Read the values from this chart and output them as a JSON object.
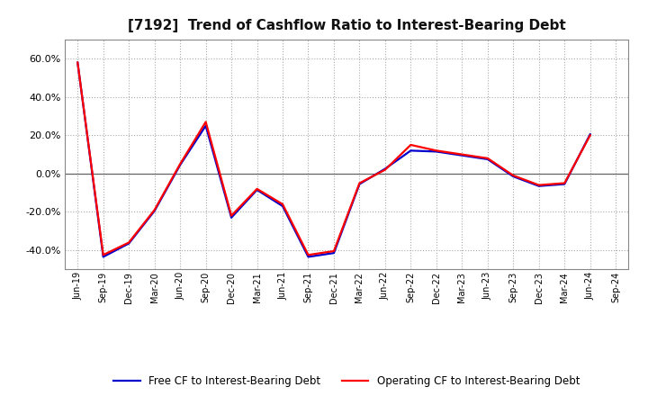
{
  "title": "[7192]  Trend of Cashflow Ratio to Interest-Bearing Debt",
  "x_labels": [
    "Jun-19",
    "Sep-19",
    "Dec-19",
    "Mar-20",
    "Jun-20",
    "Sep-20",
    "Dec-20",
    "Mar-21",
    "Jun-21",
    "Sep-21",
    "Dec-21",
    "Mar-22",
    "Jun-22",
    "Sep-22",
    "Dec-22",
    "Mar-23",
    "Jun-23",
    "Sep-23",
    "Dec-23",
    "Mar-24",
    "Jun-24",
    "Sep-24"
  ],
  "operating_cf": [
    58.0,
    -42.5,
    -36.0,
    -19.0,
    5.0,
    27.0,
    -22.0,
    -8.0,
    -16.0,
    -42.5,
    -40.5,
    -5.0,
    2.0,
    15.0,
    12.0,
    10.0,
    8.0,
    -1.0,
    -6.0,
    -5.0,
    20.0,
    null
  ],
  "free_cf": [
    58.0,
    -43.5,
    -36.5,
    -19.5,
    4.5,
    25.0,
    -23.0,
    -8.5,
    -17.0,
    -43.5,
    -41.5,
    -5.5,
    2.5,
    12.0,
    11.5,
    9.5,
    7.5,
    -1.5,
    -6.5,
    -5.5,
    20.5,
    null
  ],
  "ylim": [
    -50.0,
    70.0
  ],
  "yticks": [
    -40.0,
    -20.0,
    0.0,
    20.0,
    40.0,
    60.0
  ],
  "operating_color": "#FF0000",
  "free_color": "#0000CC",
  "bg_color": "#FFFFFF",
  "plot_bg_color": "#FFFFFF",
  "grid_color": "#AAAAAA",
  "legend_operating": "Operating CF to Interest-Bearing Debt",
  "legend_free": "Free CF to Interest-Bearing Debt",
  "title_fontsize": 11,
  "line_width": 1.6
}
